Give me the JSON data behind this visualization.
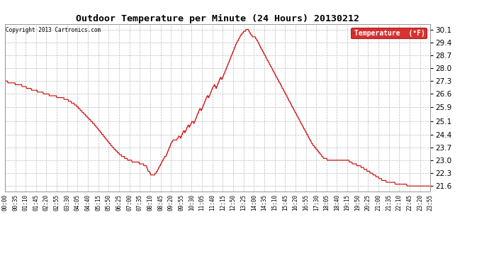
{
  "title": "Outdoor Temperature per Minute (24 Hours) 20130212",
  "copyright": "Copyright 2013 Cartronics.com",
  "legend_label": "Temperature  (°F)",
  "line_color": "#cc0000",
  "legend_bg": "#cc0000",
  "legend_text_color": "#ffffff",
  "background_color": "#ffffff",
  "grid_color": "#bbbbbb",
  "yticks": [
    21.6,
    22.3,
    23.0,
    23.7,
    24.4,
    25.1,
    25.9,
    26.6,
    27.3,
    28.0,
    28.7,
    29.4,
    30.1
  ],
  "ylim": [
    21.3,
    30.4
  ],
  "xtick_labels": [
    "00:00",
    "00:35",
    "01:10",
    "01:45",
    "02:20",
    "02:55",
    "03:30",
    "04:05",
    "04:40",
    "05:15",
    "05:50",
    "06:25",
    "07:00",
    "07:35",
    "08:10",
    "08:45",
    "09:20",
    "09:55",
    "10:30",
    "11:05",
    "11:40",
    "12:15",
    "12:50",
    "13:25",
    "14:00",
    "14:35",
    "15:10",
    "15:45",
    "16:20",
    "16:55",
    "17:30",
    "18:05",
    "18:40",
    "19:15",
    "19:50",
    "20:25",
    "21:00",
    "21:35",
    "22:10",
    "22:45",
    "23:20",
    "23:55"
  ],
  "n_points": 1440,
  "control_points": [
    [
      0,
      27.3
    ],
    [
      20,
      27.2
    ],
    [
      50,
      27.1
    ],
    [
      80,
      26.9
    ],
    [
      120,
      26.7
    ],
    [
      160,
      26.5
    ],
    [
      190,
      26.4
    ],
    [
      210,
      26.3
    ],
    [
      240,
      26.0
    ],
    [
      270,
      25.5
    ],
    [
      300,
      25.0
    ],
    [
      330,
      24.4
    ],
    [
      360,
      23.8
    ],
    [
      390,
      23.3
    ],
    [
      420,
      23.0
    ],
    [
      440,
      22.9
    ],
    [
      455,
      22.85
    ],
    [
      460,
      22.8
    ],
    [
      465,
      22.8
    ],
    [
      470,
      22.75
    ],
    [
      475,
      22.7
    ],
    [
      480,
      22.65
    ],
    [
      485,
      22.4
    ],
    [
      490,
      22.35
    ],
    [
      495,
      22.2
    ],
    [
      500,
      22.15
    ],
    [
      505,
      22.2
    ],
    [
      510,
      22.3
    ],
    [
      515,
      22.4
    ],
    [
      520,
      22.55
    ],
    [
      525,
      22.7
    ],
    [
      530,
      22.85
    ],
    [
      535,
      23.0
    ],
    [
      540,
      23.15
    ],
    [
      545,
      23.2
    ],
    [
      550,
      23.4
    ],
    [
      555,
      23.6
    ],
    [
      560,
      23.8
    ],
    [
      565,
      24.0
    ],
    [
      570,
      24.1
    ],
    [
      575,
      24.15
    ],
    [
      580,
      24.1
    ],
    [
      585,
      24.2
    ],
    [
      590,
      24.35
    ],
    [
      595,
      24.2
    ],
    [
      600,
      24.4
    ],
    [
      605,
      24.6
    ],
    [
      610,
      24.5
    ],
    [
      615,
      24.7
    ],
    [
      620,
      24.9
    ],
    [
      625,
      24.8
    ],
    [
      630,
      25.0
    ],
    [
      635,
      25.15
    ],
    [
      640,
      25.0
    ],
    [
      645,
      25.2
    ],
    [
      650,
      25.4
    ],
    [
      655,
      25.6
    ],
    [
      660,
      25.8
    ],
    [
      665,
      25.7
    ],
    [
      670,
      25.9
    ],
    [
      675,
      26.1
    ],
    [
      680,
      26.3
    ],
    [
      685,
      26.5
    ],
    [
      690,
      26.4
    ],
    [
      695,
      26.6
    ],
    [
      700,
      26.8
    ],
    [
      705,
      27.0
    ],
    [
      710,
      27.1
    ],
    [
      715,
      26.9
    ],
    [
      720,
      27.1
    ],
    [
      725,
      27.3
    ],
    [
      730,
      27.5
    ],
    [
      735,
      27.4
    ],
    [
      740,
      27.6
    ],
    [
      745,
      27.8
    ],
    [
      750,
      28.0
    ],
    [
      755,
      28.2
    ],
    [
      760,
      28.4
    ],
    [
      765,
      28.6
    ],
    [
      770,
      28.8
    ],
    [
      775,
      29.0
    ],
    [
      780,
      29.2
    ],
    [
      785,
      29.4
    ],
    [
      790,
      29.5
    ],
    [
      795,
      29.7
    ],
    [
      800,
      29.8
    ],
    [
      805,
      29.9
    ],
    [
      810,
      30.0
    ],
    [
      815,
      30.05
    ],
    [
      820,
      30.1
    ],
    [
      825,
      30.05
    ],
    [
      830,
      29.9
    ],
    [
      835,
      29.8
    ],
    [
      840,
      29.7
    ],
    [
      845,
      29.75
    ],
    [
      850,
      29.6
    ],
    [
      855,
      29.5
    ],
    [
      860,
      29.3
    ],
    [
      870,
      29.0
    ],
    [
      880,
      28.7
    ],
    [
      890,
      28.4
    ],
    [
      900,
      28.1
    ],
    [
      910,
      27.8
    ],
    [
      920,
      27.5
    ],
    [
      930,
      27.2
    ],
    [
      940,
      26.9
    ],
    [
      950,
      26.6
    ],
    [
      960,
      26.3
    ],
    [
      970,
      26.0
    ],
    [
      980,
      25.7
    ],
    [
      990,
      25.4
    ],
    [
      1000,
      25.1
    ],
    [
      1010,
      24.8
    ],
    [
      1020,
      24.5
    ],
    [
      1030,
      24.2
    ],
    [
      1040,
      23.9
    ],
    [
      1050,
      23.7
    ],
    [
      1060,
      23.5
    ],
    [
      1070,
      23.3
    ],
    [
      1080,
      23.1
    ],
    [
      1090,
      23.05
    ],
    [
      1100,
      23.0
    ],
    [
      1110,
      23.0
    ],
    [
      1120,
      23.05
    ],
    [
      1130,
      23.0
    ],
    [
      1140,
      23.0
    ],
    [
      1150,
      23.05
    ],
    [
      1155,
      23.0
    ],
    [
      1160,
      23.0
    ],
    [
      1170,
      22.9
    ],
    [
      1180,
      22.8
    ],
    [
      1190,
      22.75
    ],
    [
      1200,
      22.7
    ],
    [
      1210,
      22.6
    ],
    [
      1220,
      22.5
    ],
    [
      1230,
      22.4
    ],
    [
      1240,
      22.3
    ],
    [
      1260,
      22.1
    ],
    [
      1280,
      21.9
    ],
    [
      1300,
      21.8
    ],
    [
      1320,
      21.75
    ],
    [
      1360,
      21.65
    ],
    [
      1400,
      21.62
    ],
    [
      1440,
      21.6
    ]
  ]
}
